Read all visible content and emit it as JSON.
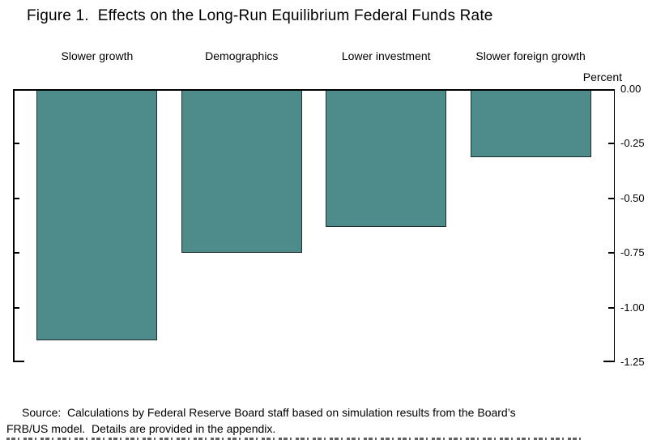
{
  "title": "Figure 1.  Effects on the Long-Run Equilibrium Federal Funds Rate",
  "chart_data": {
    "type": "bar",
    "title": "Figure 1.  Effects on the Long-Run Equilibrium Federal Funds Rate",
    "categories": [
      "Slower growth",
      "Demographics",
      "Lower investment",
      "Slower foreign growth"
    ],
    "values": [
      -1.15,
      -0.75,
      -0.63,
      -0.31
    ],
    "unit_label": "Percent",
    "ylabel": "Percent",
    "xlabel": "",
    "ylim": [
      0,
      -1.25
    ],
    "yticks": [
      0,
      -0.25,
      -0.5,
      -0.75,
      -1.0,
      -1.25
    ],
    "ytick_labels": [
      "0.00",
      "-0.25",
      "-0.50",
      "-0.75",
      "-1.00",
      "-1.25"
    ],
    "ytick_side": "right",
    "grid": false,
    "legend": "none",
    "bar_color": "#4e8c8c",
    "bar_border_color": "#1f2d2d",
    "axis_color": "#000000"
  },
  "source": {
    "lines": [
      "Source:  Calculations by Federal Reserve Board staff based on simulation results from the Board’s",
      "FRB/US model.  Details are provided in the appendix."
    ]
  }
}
